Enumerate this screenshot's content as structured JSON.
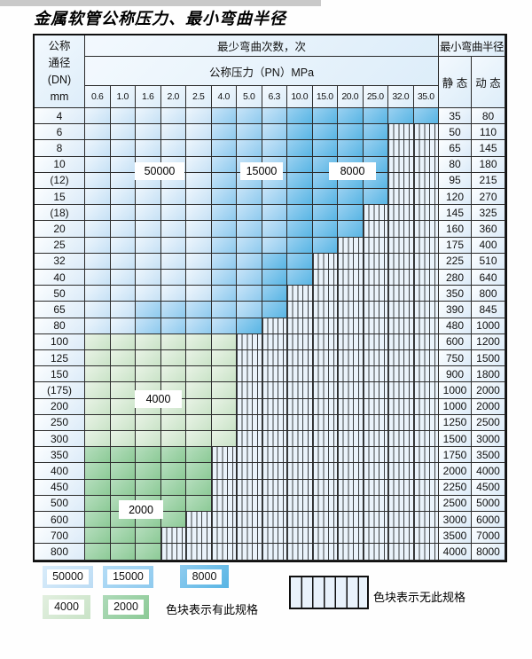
{
  "title": "金属软管公称压力、最小弯曲半径",
  "table": {
    "corner_header": "公称\n通径\n(DN)\nmm",
    "bend_times_header": "最少弯曲次数，次",
    "pressure_band_header": "公称压力（PN）MPa",
    "radius_header": "最小弯曲半径",
    "static_header": "静 态",
    "dynamic_header": "动 态",
    "pressure_columns": [
      "0.6",
      "1.0",
      "1.6",
      "2.0",
      "2.5",
      "4.0",
      "5.0",
      "6.3",
      "10.0",
      "15.0",
      "20.0",
      "25.0",
      "32.0",
      "35.0"
    ],
    "cell_codes": {
      "b1": "50000 次 (浅蓝)",
      "b2": "15000 次 (中蓝)",
      "b3": "8000 次 (深蓝)",
      "g1": "4000 次 (浅绿)",
      "g2": "2000 次 (中绿)",
      "x": "无此规格 (竖线条纹)"
    },
    "rows": [
      {
        "dn": "4",
        "cells": [
          "b1",
          "b1",
          "b1",
          "b1",
          "b1",
          "b2",
          "b2",
          "b2",
          "b3",
          "b3",
          "b3",
          "b3",
          "b3",
          "b3"
        ],
        "static": "35",
        "dynamic": "80"
      },
      {
        "dn": "6",
        "cells": [
          "b1",
          "b1",
          "b1",
          "b1",
          "b1",
          "b2",
          "b2",
          "b2",
          "b3",
          "b3",
          "b3",
          "b3",
          "x",
          "x"
        ],
        "static": "50",
        "dynamic": "110"
      },
      {
        "dn": "8",
        "cells": [
          "b1",
          "b1",
          "b1",
          "b1",
          "b1",
          "b2",
          "b2",
          "b2",
          "b3",
          "b3",
          "b3",
          "b3",
          "x",
          "x"
        ],
        "static": "65",
        "dynamic": "145"
      },
      {
        "dn": "10",
        "cells": [
          "b1",
          "b1",
          "b1",
          "b1",
          "b1",
          "b2",
          "b2",
          "b2",
          "b3",
          "b3",
          "b3",
          "b3",
          "x",
          "x"
        ],
        "static": "80",
        "dynamic": "180"
      },
      {
        "dn": "(12)",
        "cells": [
          "b1",
          "b1",
          "b1",
          "b1",
          "b1",
          "b2",
          "b2",
          "b2",
          "b3",
          "b3",
          "b3",
          "b3",
          "x",
          "x"
        ],
        "static": "95",
        "dynamic": "215"
      },
      {
        "dn": "15",
        "cells": [
          "b1",
          "b1",
          "b1",
          "b1",
          "b1",
          "b2",
          "b2",
          "b2",
          "b3",
          "b3",
          "b3",
          "b3",
          "x",
          "x"
        ],
        "static": "120",
        "dynamic": "270"
      },
      {
        "dn": "(18)",
        "cells": [
          "b1",
          "b1",
          "b1",
          "b1",
          "b1",
          "b2",
          "b2",
          "b2",
          "b3",
          "b3",
          "b3",
          "x",
          "x",
          "x"
        ],
        "static": "145",
        "dynamic": "325"
      },
      {
        "dn": "20",
        "cells": [
          "b1",
          "b1",
          "b1",
          "b1",
          "b1",
          "b2",
          "b2",
          "b2",
          "b3",
          "b3",
          "b3",
          "x",
          "x",
          "x"
        ],
        "static": "160",
        "dynamic": "360"
      },
      {
        "dn": "25",
        "cells": [
          "b1",
          "b1",
          "b1",
          "b1",
          "b1",
          "b2",
          "b2",
          "b2",
          "b3",
          "b3",
          "x",
          "x",
          "x",
          "x"
        ],
        "static": "175",
        "dynamic": "400"
      },
      {
        "dn": "32",
        "cells": [
          "b1",
          "b1",
          "b1",
          "b1",
          "b1",
          "b2",
          "b2",
          "b3",
          "b3",
          "x",
          "x",
          "x",
          "x",
          "x"
        ],
        "static": "225",
        "dynamic": "510"
      },
      {
        "dn": "40",
        "cells": [
          "b1",
          "b1",
          "b1",
          "b1",
          "b1",
          "b2",
          "b2",
          "b3",
          "b3",
          "x",
          "x",
          "x",
          "x",
          "x"
        ],
        "static": "280",
        "dynamic": "640"
      },
      {
        "dn": "50",
        "cells": [
          "b1",
          "b1",
          "b1",
          "b1",
          "b1",
          "b2",
          "b2",
          "b3",
          "x",
          "x",
          "x",
          "x",
          "x",
          "x"
        ],
        "static": "350",
        "dynamic": "800"
      },
      {
        "dn": "65",
        "cells": [
          "b1",
          "b1",
          "b2",
          "b2",
          "b2",
          "b2",
          "b2",
          "b3",
          "x",
          "x",
          "x",
          "x",
          "x",
          "x"
        ],
        "static": "390",
        "dynamic": "845"
      },
      {
        "dn": "80",
        "cells": [
          "b1",
          "b1",
          "b2",
          "b2",
          "b2",
          "b2",
          "b3",
          "x",
          "x",
          "x",
          "x",
          "x",
          "x",
          "x"
        ],
        "static": "480",
        "dynamic": "1000"
      },
      {
        "dn": "100",
        "cells": [
          "g1",
          "g1",
          "g1",
          "g1",
          "g1",
          "g1",
          "x",
          "x",
          "x",
          "x",
          "x",
          "x",
          "x",
          "x"
        ],
        "static": "600",
        "dynamic": "1200"
      },
      {
        "dn": "125",
        "cells": [
          "g1",
          "g1",
          "g1",
          "g1",
          "g1",
          "g1",
          "x",
          "x",
          "x",
          "x",
          "x",
          "x",
          "x",
          "x"
        ],
        "static": "750",
        "dynamic": "1500"
      },
      {
        "dn": "150",
        "cells": [
          "g1",
          "g1",
          "g1",
          "g1",
          "g1",
          "g1",
          "x",
          "x",
          "x",
          "x",
          "x",
          "x",
          "x",
          "x"
        ],
        "static": "900",
        "dynamic": "1800"
      },
      {
        "dn": "(175)",
        "cells": [
          "g1",
          "g1",
          "g1",
          "g1",
          "g1",
          "g1",
          "x",
          "x",
          "x",
          "x",
          "x",
          "x",
          "x",
          "x"
        ],
        "static": "1000",
        "dynamic": "2000"
      },
      {
        "dn": "200",
        "cells": [
          "g1",
          "g1",
          "g1",
          "g1",
          "g1",
          "g1",
          "x",
          "x",
          "x",
          "x",
          "x",
          "x",
          "x",
          "x"
        ],
        "static": "1000",
        "dynamic": "2000"
      },
      {
        "dn": "250",
        "cells": [
          "g1",
          "g1",
          "g1",
          "g1",
          "g1",
          "g1",
          "x",
          "x",
          "x",
          "x",
          "x",
          "x",
          "x",
          "x"
        ],
        "static": "1250",
        "dynamic": "2500"
      },
      {
        "dn": "300",
        "cells": [
          "g1",
          "g1",
          "g1",
          "g1",
          "g1",
          "g1",
          "x",
          "x",
          "x",
          "x",
          "x",
          "x",
          "x",
          "x"
        ],
        "static": "1500",
        "dynamic": "3000"
      },
      {
        "dn": "350",
        "cells": [
          "g2",
          "g2",
          "g2",
          "g2",
          "g2",
          "x",
          "x",
          "x",
          "x",
          "x",
          "x",
          "x",
          "x",
          "x"
        ],
        "static": "1750",
        "dynamic": "3500"
      },
      {
        "dn": "400",
        "cells": [
          "g2",
          "g2",
          "g2",
          "g2",
          "g2",
          "x",
          "x",
          "x",
          "x",
          "x",
          "x",
          "x",
          "x",
          "x"
        ],
        "static": "2000",
        "dynamic": "4000"
      },
      {
        "dn": "450",
        "cells": [
          "g2",
          "g2",
          "g2",
          "g2",
          "g2",
          "x",
          "x",
          "x",
          "x",
          "x",
          "x",
          "x",
          "x",
          "x"
        ],
        "static": "2250",
        "dynamic": "4500"
      },
      {
        "dn": "500",
        "cells": [
          "g2",
          "g2",
          "g2",
          "g2",
          "g2",
          "x",
          "x",
          "x",
          "x",
          "x",
          "x",
          "x",
          "x",
          "x"
        ],
        "static": "2500",
        "dynamic": "5000"
      },
      {
        "dn": "600",
        "cells": [
          "g2",
          "g2",
          "g2",
          "g2",
          "x",
          "x",
          "x",
          "x",
          "x",
          "x",
          "x",
          "x",
          "x",
          "x"
        ],
        "static": "3000",
        "dynamic": "6000"
      },
      {
        "dn": "700",
        "cells": [
          "g2",
          "g2",
          "g2",
          "x",
          "x",
          "x",
          "x",
          "x",
          "x",
          "x",
          "x",
          "x",
          "x",
          "x"
        ],
        "static": "3500",
        "dynamic": "7000"
      },
      {
        "dn": "800",
        "cells": [
          "g2",
          "g2",
          "g2",
          "x",
          "x",
          "x",
          "x",
          "x",
          "x",
          "x",
          "x",
          "x",
          "x",
          "x"
        ],
        "static": "4000",
        "dynamic": "8000"
      }
    ]
  },
  "overlays": [
    {
      "text": "50000"
    },
    {
      "text": "15000"
    },
    {
      "text": "8000"
    },
    {
      "text": "4000"
    },
    {
      "text": "2000"
    }
  ],
  "legend": {
    "swatches": [
      {
        "label": "50000",
        "code": "b1"
      },
      {
        "label": "15000",
        "code": "b2"
      },
      {
        "label": "8000",
        "code": "b3"
      },
      {
        "label": "4000",
        "code": "g1"
      },
      {
        "label": "2000",
        "code": "g2"
      }
    ],
    "has_spec_text": "色块表示有此规格",
    "no_spec_text": "色块表示无此规格"
  },
  "colors": {
    "blue_50000": "#c6e1f5",
    "blue_15000": "#8ecaee",
    "blue_8000": "#58b5e4",
    "green_4000": "#c9e3c7",
    "green_2000": "#8cca96",
    "empty_cell_bg": "#eaf3fb",
    "grid_line": "#2b2b2b"
  }
}
